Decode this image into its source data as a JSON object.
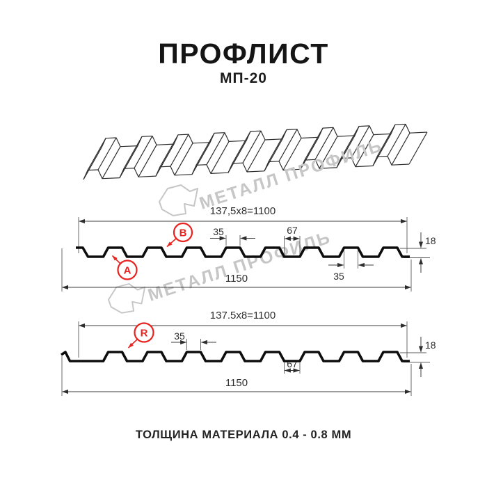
{
  "header": {
    "title": "ПРОФЛИСТ",
    "subtitle": "МП-20"
  },
  "footer": {
    "caption": "ТОЛЩИНА МАТЕРИАЛА 0.4 - 0.8 ММ"
  },
  "watermark": {
    "text": "МЕТАЛЛ ПРОФИЛЬ",
    "color": "#c6c6c6"
  },
  "colors": {
    "accent_red": "#e8221e",
    "profile_line": "#0d0d0d",
    "dim_line": "#3c3c3c"
  },
  "diagram_top": {
    "dim_module": "137,5x8=1100",
    "dim_total": "1150",
    "dim_crest_width": "35",
    "dim_valley_width": "67",
    "dim_height": "18",
    "dim_crest_width_2": "35",
    "labels": {
      "a": "A",
      "b": "B"
    }
  },
  "diagram_bottom": {
    "dim_module": "137.5x8=1100",
    "dim_total": "1150",
    "dim_crest_width": "35",
    "dim_valley_width": "67",
    "dim_height": "18",
    "labels": {
      "r": "R"
    }
  }
}
